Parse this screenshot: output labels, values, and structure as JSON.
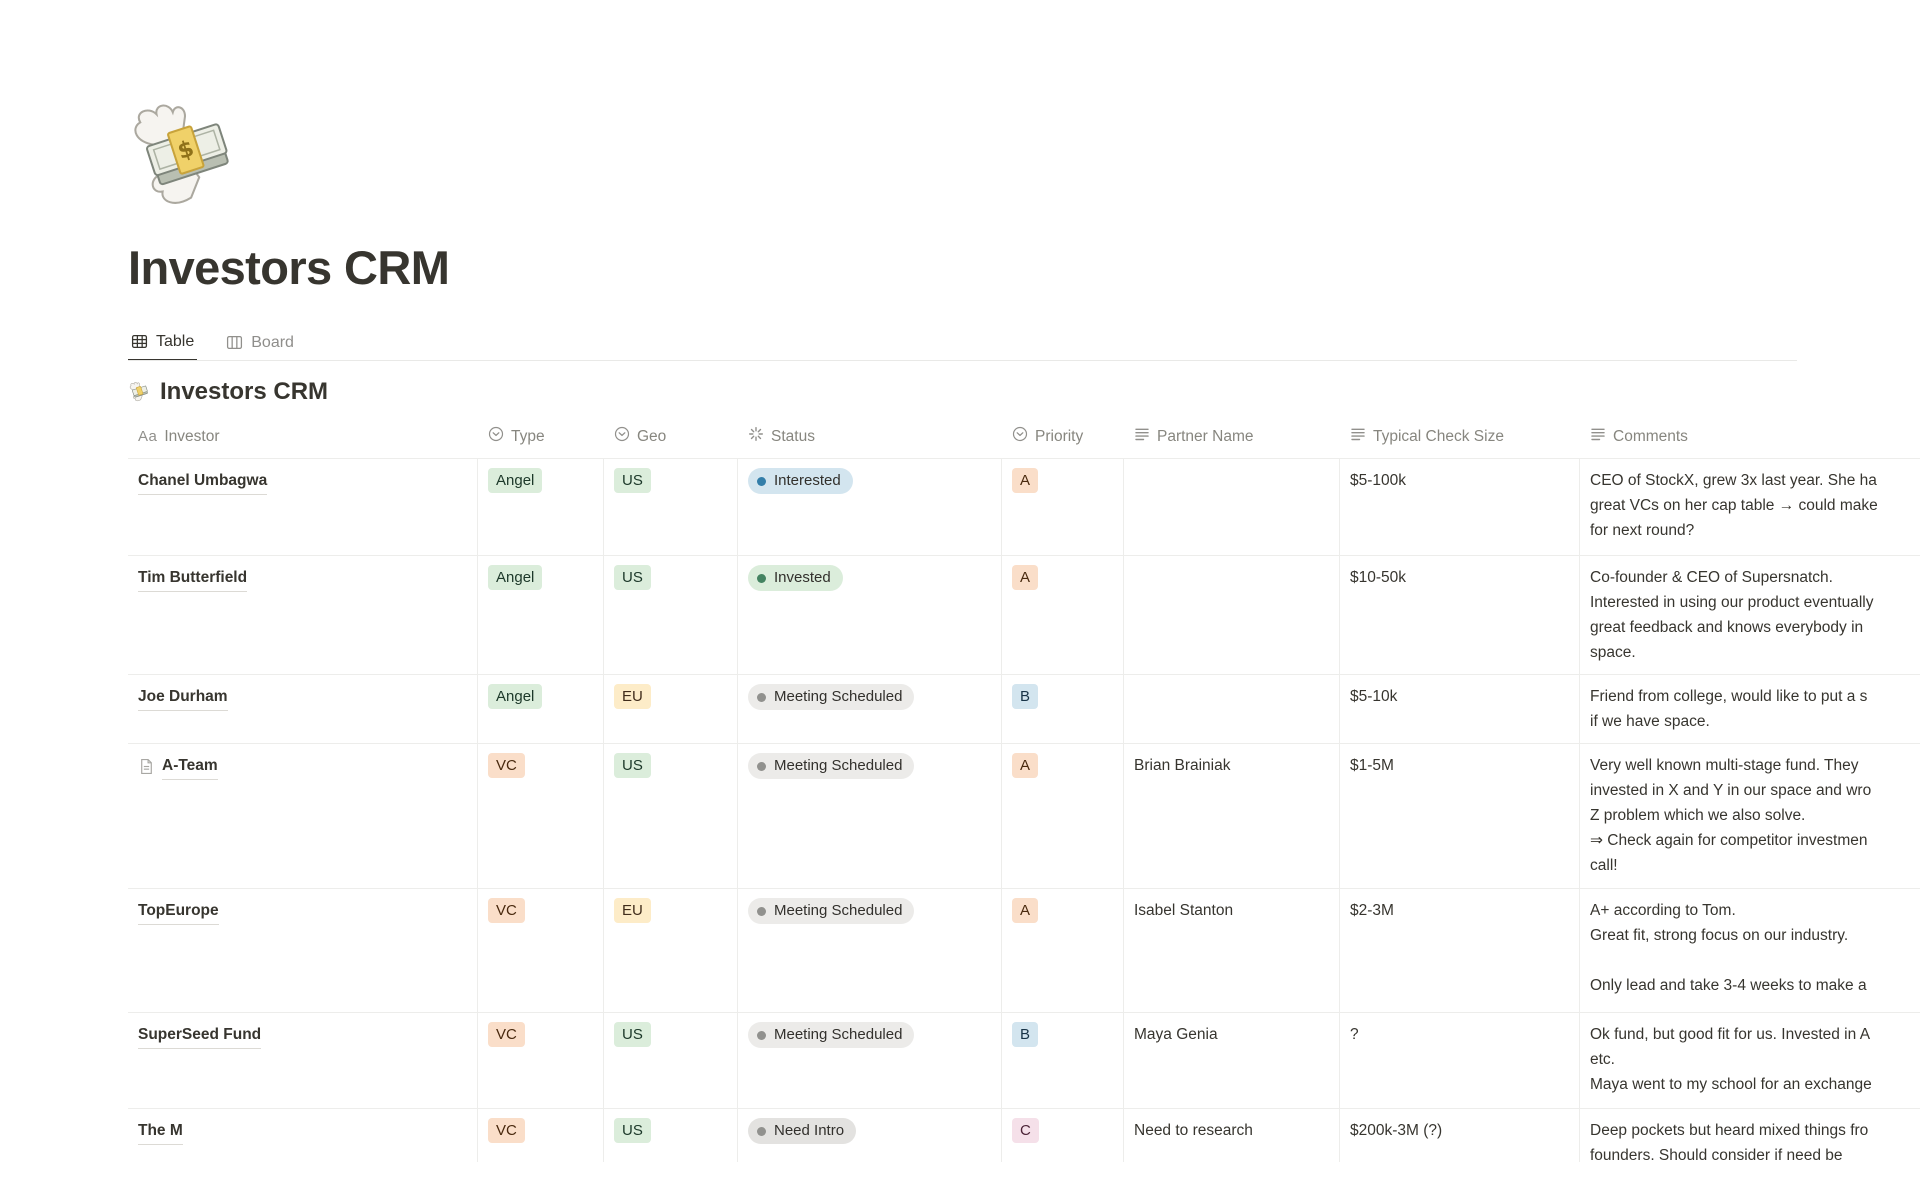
{
  "page": {
    "icon": "money-with-wings",
    "title": "Investors CRM"
  },
  "tabs": [
    {
      "label": "Table",
      "icon": "table-view",
      "active": true
    },
    {
      "label": "Board",
      "icon": "board-view",
      "active": false
    }
  ],
  "section": {
    "icon": "money-with-wings",
    "title": "Investors CRM"
  },
  "table": {
    "columns": [
      {
        "label": "Investor",
        "icon": "title"
      },
      {
        "label": "Type",
        "icon": "select"
      },
      {
        "label": "Geo",
        "icon": "select"
      },
      {
        "label": "Status",
        "icon": "status"
      },
      {
        "label": "Priority",
        "icon": "select"
      },
      {
        "label": "Partner Name",
        "icon": "text"
      },
      {
        "label": "Typical Check Size",
        "icon": "text"
      },
      {
        "label": "Comments",
        "icon": "text"
      }
    ],
    "rows": [
      {
        "investor": "Chanel Umbagwa",
        "page_icon": false,
        "type": {
          "label": "Angel",
          "color": "green"
        },
        "geo": {
          "label": "US",
          "color": "green"
        },
        "status": {
          "label": "Interested",
          "color": "blue",
          "dot": "blue"
        },
        "priority": {
          "label": "A",
          "color": "peach"
        },
        "partner": "",
        "check_size": "$5-100k",
        "comments": [
          "CEO of StockX, grew 3x last year. She ha",
          "great VCs on her cap table → could make",
          "for next round?"
        ]
      },
      {
        "investor": "Tim Butterfield",
        "page_icon": false,
        "type": {
          "label": "Angel",
          "color": "green"
        },
        "geo": {
          "label": "US",
          "color": "green"
        },
        "status": {
          "label": "Invested",
          "color": "green",
          "dot": "green"
        },
        "priority": {
          "label": "A",
          "color": "peach"
        },
        "partner": "",
        "check_size": "$10-50k",
        "comments": [
          "Co-founder & CEO of Supersnatch.",
          "Interested in using our product eventually",
          "great feedback and knows everybody in",
          "space."
        ]
      },
      {
        "investor": "Joe Durham",
        "page_icon": false,
        "type": {
          "label": "Angel",
          "color": "green"
        },
        "geo": {
          "label": "EU",
          "color": "yellow"
        },
        "status": {
          "label": "Meeting Scheduled",
          "color": "gray",
          "dot": "gray"
        },
        "priority": {
          "label": "B",
          "color": "blue"
        },
        "partner": "",
        "check_size": "$5-10k",
        "comments": [
          "Friend from college, would like to put a s",
          "if we have space."
        ]
      },
      {
        "investor": "A-Team",
        "page_icon": true,
        "type": {
          "label": "VC",
          "color": "peach"
        },
        "geo": {
          "label": "US",
          "color": "green"
        },
        "status": {
          "label": "Meeting Scheduled",
          "color": "gray",
          "dot": "gray"
        },
        "priority": {
          "label": "A",
          "color": "peach"
        },
        "partner": "Brian Brainiak",
        "check_size": "$1-5M",
        "comments": [
          "Very well known multi-stage fund. They",
          "invested in X and Y in our space and wro",
          "Z problem which we also solve.",
          "⇒ Check again for competitor investmen",
          "call!"
        ]
      },
      {
        "investor": "TopEurope",
        "page_icon": false,
        "type": {
          "label": "VC",
          "color": "peach"
        },
        "geo": {
          "label": "EU",
          "color": "yellow"
        },
        "status": {
          "label": "Meeting Scheduled",
          "color": "gray",
          "dot": "gray"
        },
        "priority": {
          "label": "A",
          "color": "peach"
        },
        "partner": "Isabel Stanton",
        "check_size": "$2-3M",
        "comments": [
          "A+ according to Tom.",
          "Great fit, strong focus on our industry.",
          "",
          "Only lead and take 3-4 weeks to make a"
        ]
      },
      {
        "investor": "SuperSeed Fund",
        "page_icon": false,
        "type": {
          "label": "VC",
          "color": "peach"
        },
        "geo": {
          "label": "US",
          "color": "green"
        },
        "status": {
          "label": "Meeting Scheduled",
          "color": "gray",
          "dot": "gray"
        },
        "priority": {
          "label": "B",
          "color": "blue"
        },
        "partner": "Maya Genia",
        "check_size": "?",
        "comments": [
          "Ok fund, but good fit for us. Invested in A",
          "etc.",
          "Maya went to my school for an exchange"
        ]
      },
      {
        "investor": "The M",
        "page_icon": false,
        "type": {
          "label": "VC",
          "color": "peach"
        },
        "geo": {
          "label": "US",
          "color": "green"
        },
        "status": {
          "label": "Need Intro",
          "color": "darkgray",
          "dot": "gray"
        },
        "priority": {
          "label": "C",
          "color": "pink"
        },
        "partner": "Need to research",
        "check_size": "$200k-3M (?)",
        "comments": [
          "Deep pockets but heard mixed things fro",
          "founders. Should consider if need be"
        ]
      }
    ]
  },
  "colors": {
    "text": "#37352F",
    "muted": "#87867F",
    "border": "#EDEDEB",
    "tag_green_bg": "#DBEDDB",
    "tag_yellow_bg": "#FDECC8",
    "tag_peach_bg": "#FADEC9",
    "tag_blue_bg": "#D3E5EF",
    "tag_pink_bg": "#F5E0E9",
    "status_blue_bg": "#D3E5EF",
    "status_green_bg": "#DBEDDB",
    "status_gray_bg": "#ECEBE9",
    "status_darkgray_bg": "#E3E2E0",
    "dot_blue": "#337EA9",
    "dot_green": "#448361",
    "dot_gray": "#91918E"
  }
}
